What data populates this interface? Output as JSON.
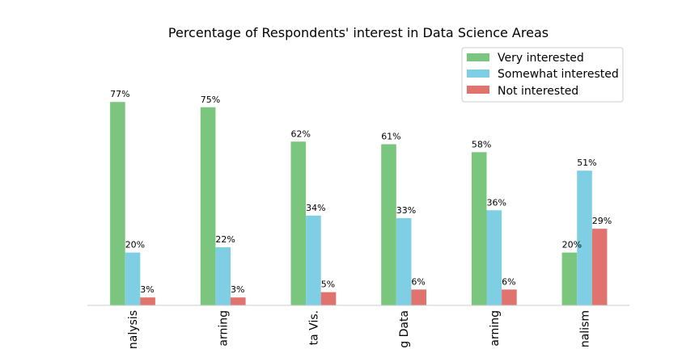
{
  "chart_data": {
    "type": "bar",
    "title": "Percentage of Respondents' interest in Data Science Areas",
    "xlabel": "",
    "ylabel": "",
    "ylim": [
      0,
      100
    ],
    "grid": false,
    "legend_position": "top-right",
    "categories": [
      "Data Analysis",
      "Machine Learning",
      "Data Vis.",
      "Big Data",
      "Deep Learning",
      "Data Journalism"
    ],
    "tick_labels_visible": [
      "nalysis",
      "arning",
      "ta Vis.",
      "g Data",
      "arning",
      "nalism"
    ],
    "series": [
      {
        "name": "Very interested",
        "color": "#7bc67e",
        "values": [
          77,
          75,
          62,
          61,
          58,
          20
        ],
        "labels": [
          "77%",
          "75%",
          "62%",
          "61%",
          "58%",
          "20%"
        ]
      },
      {
        "name": "Somewhat interested",
        "color": "#7ecfe4",
        "values": [
          20,
          22,
          34,
          33,
          36,
          51
        ],
        "labels": [
          "20%",
          "22%",
          "34%",
          "33%",
          "36%",
          "51%"
        ]
      },
      {
        "name": "Not interested",
        "color": "#e0736d",
        "values": [
          3,
          3,
          5,
          6,
          6,
          29
        ],
        "labels": [
          "3%",
          "3%",
          "5%",
          "6%",
          "6%",
          "29%"
        ]
      }
    ]
  }
}
